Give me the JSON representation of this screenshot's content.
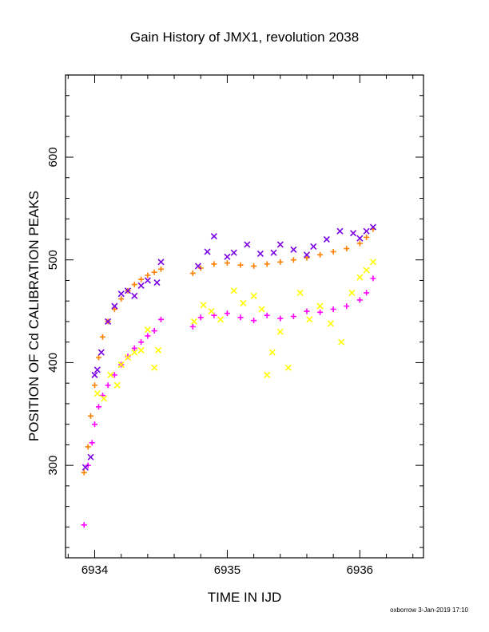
{
  "chart_data": {
    "type": "scatter",
    "title": "Gain History of JMX1, revolution 2038",
    "xlabel": "TIME IN IJD",
    "ylabel": "POSITION OF Cd CALIBRATION PEAKS",
    "xlim": [
      6933.78,
      6936.48
    ],
    "ylim": [
      210,
      680
    ],
    "x_ticks": [
      6934,
      6935,
      6936
    ],
    "x_tick_labels": [
      "6934",
      "6935",
      "6936"
    ],
    "y_ticks": [
      300,
      400,
      500,
      600
    ],
    "y_tick_labels": [
      "300",
      "400",
      "500",
      "600"
    ],
    "grid": false,
    "footer": "oxborrow  3-Jan-2019 17:10",
    "colors": {
      "orange": "#ff8000",
      "magenta": "#ff00ff",
      "purple": "#7a00e6",
      "yellow": "#ffff00"
    },
    "series": [
      {
        "marker": "plus",
        "color": "#ff8000",
        "x": [
          6933.92,
          6933.95,
          6933.97,
          6934.0,
          6934.03,
          6934.06,
          6934.1,
          6934.15,
          6934.2,
          6934.25,
          6934.3,
          6934.35,
          6934.4,
          6934.45,
          6934.5,
          6934.74,
          6934.8,
          6934.9,
          6935.0,
          6935.1,
          6935.2,
          6935.3,
          6935.4,
          6935.5,
          6935.6,
          6935.7,
          6935.8,
          6935.9,
          6936.0,
          6936.05,
          6936.1
        ],
        "y": [
          293,
          318,
          348,
          378,
          405,
          425,
          440,
          452,
          462,
          470,
          476,
          481,
          485,
          488,
          491,
          487,
          492,
          496,
          497,
          495,
          494,
          496,
          498,
          500,
          502,
          505,
          508,
          511,
          516,
          522,
          530
        ]
      },
      {
        "marker": "plus",
        "color": "#ff00ff",
        "x": [
          6933.92,
          6933.95,
          6933.98,
          6934.0,
          6934.03,
          6934.06,
          6934.1,
          6934.15,
          6934.2,
          6934.25,
          6934.3,
          6934.35,
          6934.4,
          6934.45,
          6934.5,
          6934.74,
          6934.8,
          6934.9,
          6935.0,
          6935.1,
          6935.2,
          6935.3,
          6935.4,
          6935.5,
          6935.6,
          6935.7,
          6935.8,
          6935.9,
          6936.0,
          6936.05,
          6936.1
        ],
        "y": [
          242,
          300,
          322,
          340,
          357,
          368,
          378,
          388,
          398,
          406,
          414,
          420,
          426,
          431,
          442,
          435,
          444,
          446,
          448,
          444,
          441,
          446,
          443,
          445,
          450,
          449,
          452,
          455,
          461,
          468,
          482
        ]
      },
      {
        "marker": "cross",
        "color": "#7a00e6",
        "x": [
          6933.93,
          6933.97,
          6934.0,
          6934.02,
          6934.05,
          6934.1,
          6934.15,
          6934.2,
          6934.25,
          6934.3,
          6934.35,
          6934.4,
          6934.47,
          6934.5,
          6934.78,
          6934.85,
          6934.9,
          6935.0,
          6935.05,
          6935.15,
          6935.25,
          6935.35,
          6935.4,
          6935.5,
          6935.6,
          6935.65,
          6935.75,
          6935.85,
          6935.95,
          6936.0,
          6936.05,
          6936.1
        ],
        "y": [
          298,
          308,
          388,
          393,
          410,
          440,
          455,
          467,
          470,
          465,
          475,
          480,
          478,
          498,
          494,
          508,
          523,
          503,
          507,
          515,
          506,
          507,
          515,
          510,
          505,
          513,
          520,
          528,
          526,
          521,
          528,
          532
        ]
      },
      {
        "marker": "cross",
        "color": "#ffff00",
        "x": [
          6934.02,
          6934.07,
          6934.12,
          6934.17,
          6934.2,
          6934.25,
          6934.3,
          6934.35,
          6934.4,
          6934.45,
          6934.48,
          6934.75,
          6934.82,
          6934.88,
          6934.95,
          6935.05,
          6935.12,
          6935.2,
          6935.26,
          6935.3,
          6935.34,
          6935.4,
          6935.46,
          6935.55,
          6935.62,
          6935.7,
          6935.78,
          6935.86,
          6935.94,
          6936.0,
          6936.05,
          6936.1
        ],
        "y": [
          370,
          365,
          388,
          378,
          398,
          405,
          410,
          412,
          432,
          395,
          412,
          440,
          456,
          450,
          442,
          470,
          458,
          465,
          452,
          388,
          410,
          430,
          395,
          468,
          442,
          455,
          438,
          420,
          468,
          483,
          490,
          498
        ]
      }
    ]
  }
}
